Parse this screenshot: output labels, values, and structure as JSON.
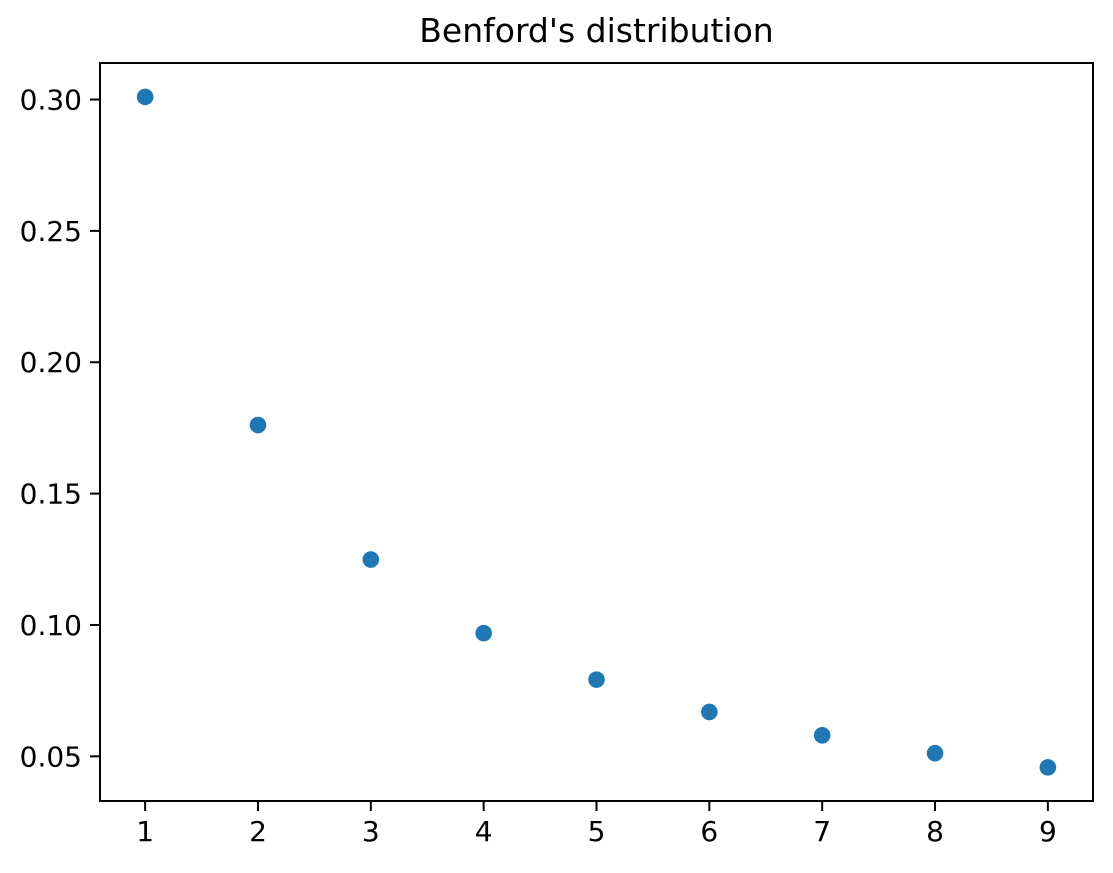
{
  "chart_data": {
    "type": "scatter",
    "title": "Benford's distribution",
    "x": [
      1,
      2,
      3,
      4,
      5,
      6,
      7,
      8,
      9
    ],
    "y": [
      0.301,
      0.1761,
      0.1249,
      0.0969,
      0.0792,
      0.0669,
      0.058,
      0.0512,
      0.0458
    ],
    "xlabel": "",
    "ylabel": "",
    "xlim": [
      0.6,
      9.4
    ],
    "ylim": [
      0.033,
      0.3139
    ],
    "xticks": [
      1,
      2,
      3,
      4,
      5,
      6,
      7,
      8,
      9
    ],
    "xtick_labels": [
      "1",
      "2",
      "3",
      "4",
      "5",
      "6",
      "7",
      "8",
      "9"
    ],
    "yticks": [
      0.05,
      0.1,
      0.15,
      0.2,
      0.25,
      0.3
    ],
    "ytick_labels": [
      "0.05",
      "0.10",
      "0.15",
      "0.20",
      "0.25",
      "0.30"
    ],
    "marker_color": "#1f77b4",
    "spine_color": "#000000",
    "text_color": "#000000",
    "background_color": "#ffffff",
    "grid": false,
    "legend": null
  }
}
